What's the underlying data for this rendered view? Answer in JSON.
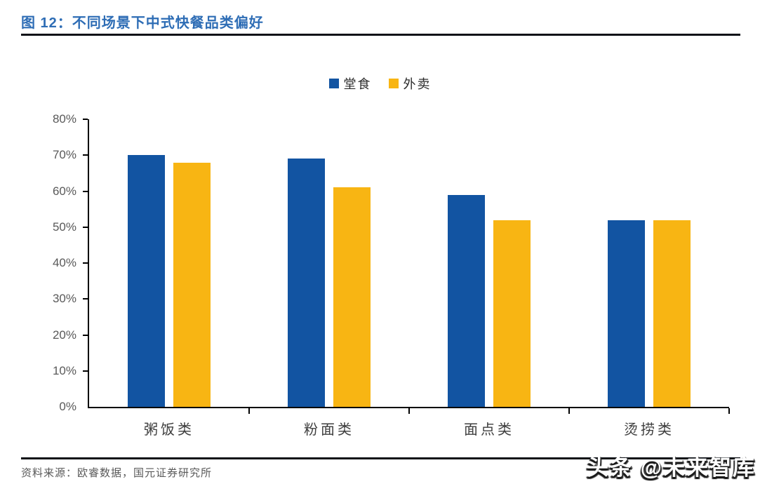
{
  "header": {
    "title": "图 12：不同场景下中式快餐品类偏好"
  },
  "colors": {
    "title_blue": "#2E6DB5",
    "rule_dark": "#0d1117",
    "axis_black": "#000000",
    "tick_label_gray": "#595959",
    "series_dine_in_blue": "#1254A2",
    "series_takeout_yellow": "#F8B513"
  },
  "chart_data": {
    "type": "bar",
    "title": "不同场景下中式快餐品类偏好",
    "categories": [
      "粥饭类",
      "粉面类",
      "面点类",
      "烫捞类"
    ],
    "series": [
      {
        "name": "堂食",
        "key": "dine-in",
        "color": "#1254A2",
        "values": [
          70,
          69,
          59,
          52
        ]
      },
      {
        "name": "外卖",
        "key": "takeout",
        "color": "#F8B513",
        "values": [
          68,
          61,
          52,
          52
        ]
      }
    ],
    "xlabel": "",
    "ylabel": "",
    "ylim": [
      0,
      80
    ],
    "ytick_step": 10,
    "ytick_labels": [
      "0%",
      "10%",
      "20%",
      "30%",
      "40%",
      "50%",
      "60%",
      "70%",
      "80%"
    ],
    "unit": "percent",
    "grid": false,
    "legend_position": "top-center"
  },
  "footer": {
    "source": "资料来源：欧睿数据，国元证券研究所"
  },
  "watermark": {
    "text": "头条 @未来智库"
  }
}
